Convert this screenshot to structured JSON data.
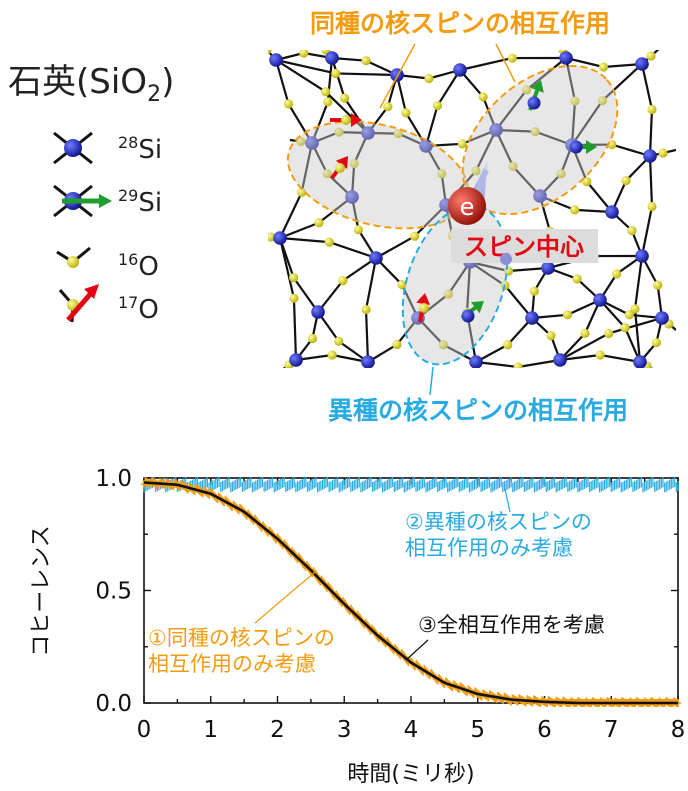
{
  "figure": {
    "legend": {
      "title": "石英",
      "title_formula_main": "(SiO",
      "title_formula_sub": "2",
      "title_formula_end": ")",
      "items": [
        {
          "mass": "28",
          "element": "Si",
          "icon": "si28-atom-icon"
        },
        {
          "mass": "29",
          "element": "Si",
          "icon": "si29-atom-with-spin-icon"
        },
        {
          "mass": "16",
          "element": "O",
          "icon": "o16-atom-icon"
        },
        {
          "mass": "17",
          "element": "O",
          "icon": "o17-atom-with-spin-icon"
        }
      ]
    },
    "labels": {
      "homonuclear": "同種の核スピンの相互作用",
      "heteronuclear": "異種の核スピンの相互作用",
      "spin_center": "スピン中心",
      "electron": "e"
    },
    "colors": {
      "orange": "#f39c12",
      "cyan": "#29abe2",
      "red": "#e30613",
      "si_blue": "#1a1fbf",
      "o_yellow": "#e8e01a",
      "green": "#1e9e2a",
      "electron_red": "#c0140e"
    }
  },
  "chart_data": {
    "type": "line",
    "xlabel": "時間(ミリ秒)",
    "ylabel": "コヒーレンス",
    "xlim": [
      0,
      8
    ],
    "ylim": [
      0,
      1
    ],
    "xticks": [
      "0",
      "1",
      "2",
      "3",
      "4",
      "5",
      "6",
      "7",
      "8"
    ],
    "yticks": [
      "0.0",
      "0.5",
      "1.0"
    ],
    "grid": false,
    "series": [
      {
        "name": "①同種の核スピンの相互作用のみ考慮",
        "name_lines": [
          "①同種の核スピンの",
          "相互作用のみ考慮"
        ],
        "color": "#f39c12",
        "style": "dense-markers",
        "x": [
          0,
          0.5,
          1.0,
          1.5,
          2.0,
          2.5,
          3.0,
          3.5,
          4.0,
          4.5,
          5.0,
          5.5,
          6.0,
          6.5,
          7.0,
          8.0
        ],
        "y": [
          0.98,
          0.97,
          0.93,
          0.85,
          0.73,
          0.59,
          0.44,
          0.3,
          0.18,
          0.09,
          0.04,
          0.015,
          0.005,
          0.0,
          0.0,
          0.0
        ]
      },
      {
        "name": "②異種の核スピンの相互作用のみ考慮",
        "name_lines": [
          "②異種の核スピンの",
          "相互作用のみ考慮"
        ],
        "color": "#29abe2",
        "style": "dense-markers",
        "x": [
          0,
          0.5,
          1.0,
          2.0,
          3.0,
          4.0,
          5.0,
          6.0,
          7.0,
          8.0
        ],
        "y": [
          0.97,
          0.97,
          0.97,
          0.97,
          0.97,
          0.97,
          0.97,
          0.97,
          0.97,
          0.97
        ]
      },
      {
        "name": "③全相互作用を考慮",
        "name_lines": [
          "③全相互作用を考慮"
        ],
        "color": "#111111",
        "style": "line",
        "x": [
          0,
          0.5,
          1.0,
          1.5,
          2.0,
          2.5,
          3.0,
          3.5,
          4.0,
          4.5,
          5.0,
          5.5,
          6.0,
          6.5,
          7.0,
          8.0
        ],
        "y": [
          0.98,
          0.97,
          0.93,
          0.85,
          0.73,
          0.59,
          0.44,
          0.3,
          0.18,
          0.09,
          0.04,
          0.015,
          0.005,
          0.0,
          0.0,
          0.0
        ]
      }
    ]
  }
}
